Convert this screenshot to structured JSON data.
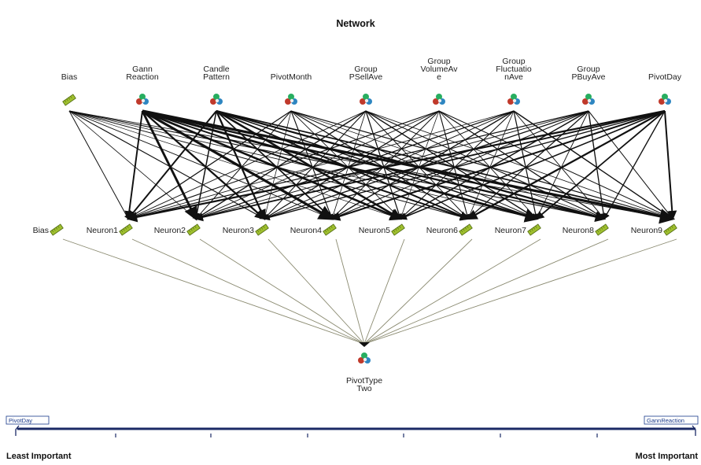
{
  "title": "Network",
  "input_layer": [
    {
      "label": "Bias",
      "lines": [
        "Bias"
      ],
      "kind": "bias"
    },
    {
      "label": "Gann Reaction",
      "lines": [
        "Gann",
        "Reaction"
      ],
      "kind": "neuron"
    },
    {
      "label": "Candle Pattern",
      "lines": [
        "Candle",
        "Pattern"
      ],
      "kind": "neuron"
    },
    {
      "label": "PivotMonth",
      "lines": [
        "PivotMonth"
      ],
      "kind": "neuron"
    },
    {
      "label": "Group PSellAve",
      "lines": [
        "Group",
        "PSellAve"
      ],
      "kind": "neuron"
    },
    {
      "label": "Group VolumeAve",
      "lines": [
        "Group",
        "VolumeAv",
        "e"
      ],
      "kind": "neuron"
    },
    {
      "label": "Group FluctuationAve",
      "lines": [
        "Group",
        "Fluctuatio",
        "nAve"
      ],
      "kind": "neuron"
    },
    {
      "label": "Group PBuyAve",
      "lines": [
        "Group",
        "PBuyAve"
      ],
      "kind": "neuron"
    },
    {
      "label": "PivotDay",
      "lines": [
        "PivotDay"
      ],
      "kind": "neuron"
    }
  ],
  "hidden_layer": [
    {
      "label": "Bias",
      "kind": "bias"
    },
    {
      "label": "Neuron1",
      "kind": "bias"
    },
    {
      "label": "Neuron2",
      "kind": "bias"
    },
    {
      "label": "Neuron3",
      "kind": "bias"
    },
    {
      "label": "Neuron4",
      "kind": "bias"
    },
    {
      "label": "Neuron5",
      "kind": "bias"
    },
    {
      "label": "Neuron6",
      "kind": "bias"
    },
    {
      "label": "Neuron7",
      "kind": "bias"
    },
    {
      "label": "Neuron8",
      "kind": "bias"
    },
    {
      "label": "Neuron9",
      "kind": "bias"
    }
  ],
  "output_layer": [
    {
      "label": "PivotType Two",
      "lines": [
        "PivotType",
        "Two"
      ],
      "kind": "neuron"
    }
  ],
  "importance_scale": {
    "least_label": "Least Important",
    "most_label": "Most Important",
    "least_variable": "PivotDay",
    "most_variable": "GannReaction"
  },
  "colors": {
    "edge": "#111111",
    "output_edge": "#8a8a70",
    "bias_icon": "#9fbf2f",
    "scale": "#1b2a66",
    "box_text": "#1a3a8a"
  }
}
